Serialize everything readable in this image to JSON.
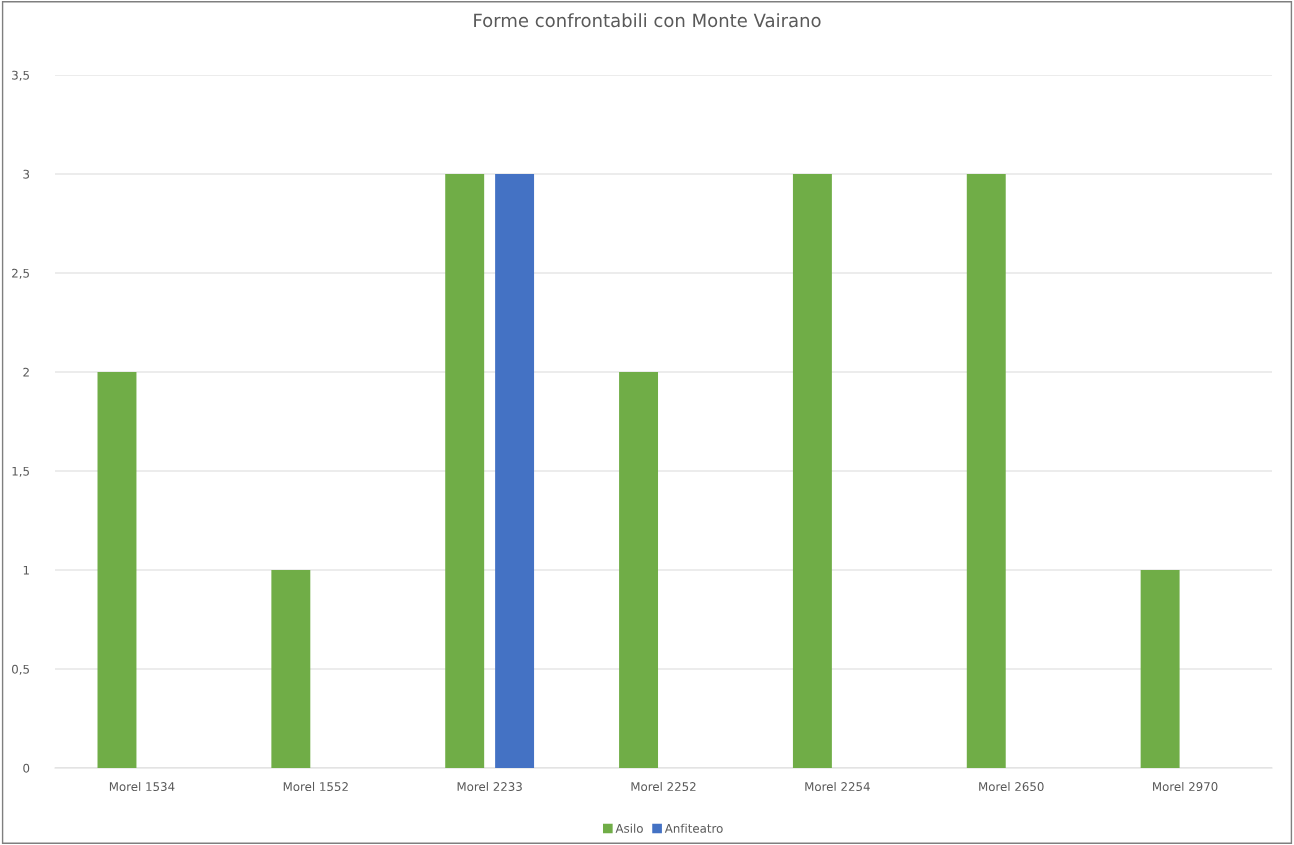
{
  "chart_data": {
    "type": "bar",
    "title": "Forme confrontabili con Monte Vairano",
    "categories": [
      "Morel 1534",
      "Morel 1552",
      "Morel 2233",
      "Morel 2252",
      "Morel 2254",
      "Morel 2650",
      "Morel 2970"
    ],
    "series": [
      {
        "name": "Asilo",
        "color": "#70ad47",
        "values": [
          2,
          1,
          3,
          2,
          3,
          3,
          1
        ]
      },
      {
        "name": "Anfiteatro",
        "color": "#4472c4",
        "values": [
          null,
          null,
          3,
          null,
          null,
          null,
          null
        ]
      }
    ],
    "ylim": [
      0,
      3.5
    ],
    "yticks": [
      0,
      {
        "value": 0.5,
        "label": "0,5"
      },
      1,
      {
        "value": 1.5,
        "label": "1,5"
      },
      2,
      {
        "value": 2.5,
        "label": "2,5"
      },
      3,
      {
        "value": 3.5,
        "label": "3,5"
      }
    ],
    "grid": "y",
    "legend": "bottom"
  }
}
